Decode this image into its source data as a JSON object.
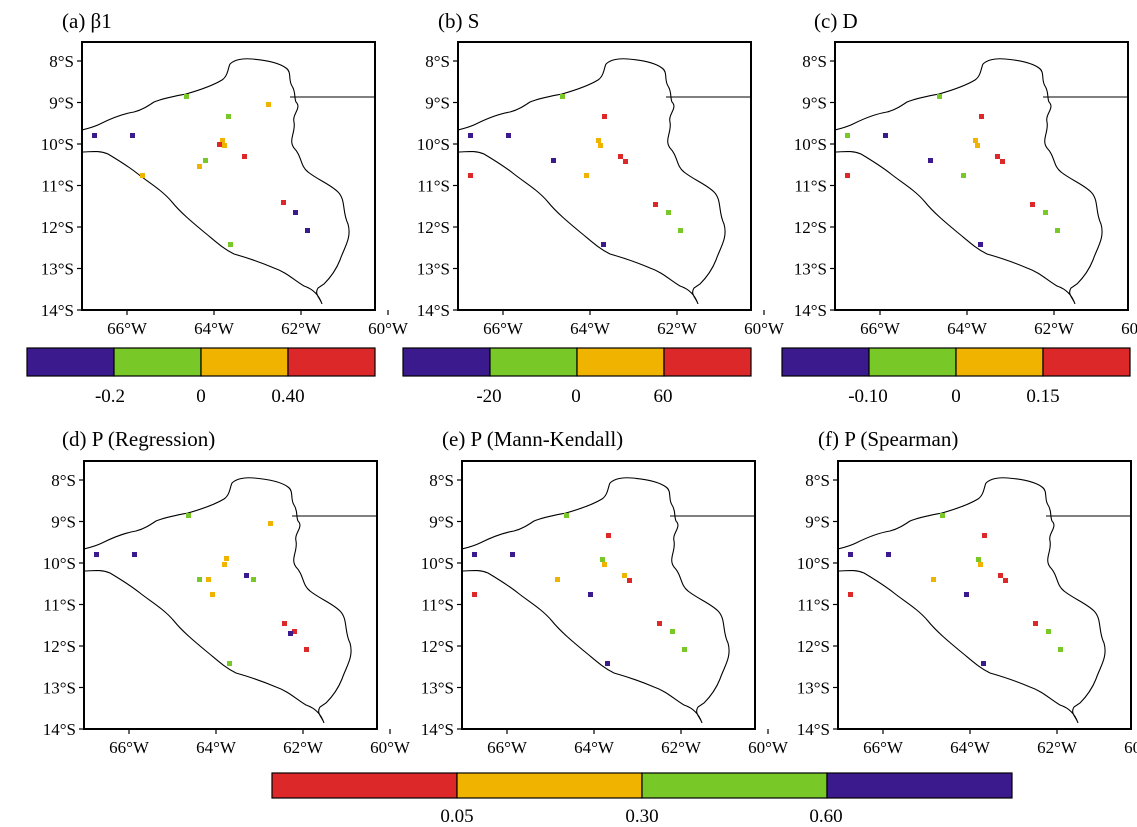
{
  "colors": {
    "purple": "#3a1a8c",
    "green": "#78c828",
    "orange": "#f0b400",
    "red": "#dc2828"
  },
  "panels": [
    {
      "title": "(a) β1",
      "stations": [
        "purple",
        "purple",
        "green",
        "green",
        "green",
        "orange",
        "orange",
        "orange",
        "orange",
        "orange",
        "red",
        "red",
        "red",
        "red",
        "red",
        "purple",
        "green",
        "purple"
      ]
    },
    {
      "title": "(b) S",
      "stations": [
        "purple",
        "purple",
        "green",
        "red",
        "orange",
        "orange",
        "purple",
        "orange",
        "red",
        "red",
        "red",
        "red",
        "red",
        "green",
        "green",
        "purple"
      ]
    },
    {
      "title": "(c) D",
      "stations": [
        "green",
        "purple",
        "green",
        "red",
        "orange",
        "orange",
        "purple",
        "green",
        "red",
        "red",
        "red",
        "red",
        "red",
        "green",
        "green",
        "purple"
      ]
    },
    {
      "title": "(d) P (Regression)",
      "stations": [
        "purple",
        "purple",
        "green",
        "green",
        "orange",
        "orange",
        "orange",
        "orange",
        "purple",
        "green",
        "red",
        "red",
        "red",
        "orange",
        "purple",
        "green",
        "purple"
      ]
    },
    {
      "title": "(e) P (Mann-Kendall)",
      "stations": [
        "purple",
        "purple",
        "green",
        "red",
        "green",
        "orange",
        "orange",
        "purple",
        "green",
        "red",
        "orange",
        "red",
        "red",
        "green",
        "green",
        "purple"
      ]
    },
    {
      "title": "(f) P (Spearman)",
      "stations": [
        "purple",
        "purple",
        "green",
        "red",
        "green",
        "orange",
        "orange",
        "purple",
        "green",
        "red",
        "red",
        "red",
        "red",
        "green",
        "green",
        "purple"
      ]
    }
  ],
  "axis_labels": {
    "lat": [
      "8°S",
      "9°S",
      "10°S",
      "11°S",
      "12°S",
      "13°S",
      "14°S"
    ],
    "lon": [
      "66°W",
      "64°W",
      "62°W",
      "60°W"
    ]
  },
  "colorbars": [
    {
      "colors": [
        "purple",
        "green",
        "orange",
        "red"
      ],
      "labels": [
        "-0.2",
        "0",
        "0.40"
      ]
    },
    {
      "colors": [
        "purple",
        "green",
        "orange",
        "red"
      ],
      "labels": [
        "-20",
        "0",
        "60"
      ]
    },
    {
      "colors": [
        "purple",
        "green",
        "orange",
        "red"
      ],
      "labels": [
        "-0.10",
        "0",
        "0.15"
      ]
    },
    {
      "colors": [
        "red",
        "orange",
        "green",
        "purple"
      ],
      "labels": [
        "0.05",
        "0.30",
        "0.60"
      ]
    }
  ]
}
